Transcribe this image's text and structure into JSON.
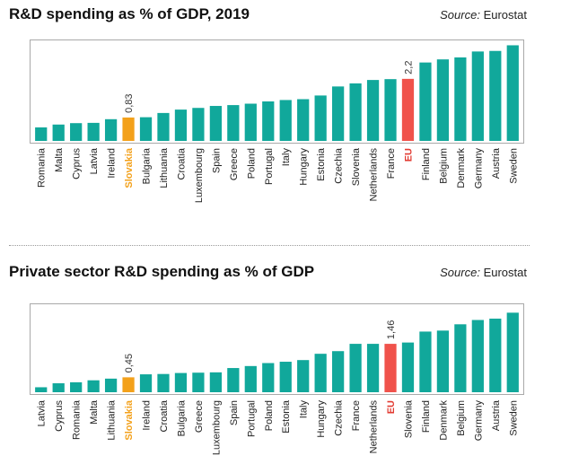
{
  "colors": {
    "bar": "#11a89b",
    "highlight_slovakia": "#f3a11b",
    "highlight_eu": "#f0524b",
    "eu_label": "#e23b32",
    "slovakia_label": "#f3a11b",
    "label": "#222222"
  },
  "charts": [
    {
      "title": "R&D spending as % of GDP, 2019",
      "source_label": "Source:",
      "source_name": "Eurostat"
    },
    {
      "title": "Private sector R&D spending as % of GDP",
      "source_label": "Source:",
      "source_name": "Eurostat"
    }
  ],
  "chart_data": [
    {
      "type": "bar",
      "title": "R&D spending as % of GDP, 2019",
      "xlabel": "",
      "ylabel": "",
      "ylim": [
        0,
        3.5
      ],
      "categories": [
        "Romania",
        "Malta",
        "Cyprus",
        "Latvia",
        "Ireland",
        "Slovakia",
        "Bulgaria",
        "Lithuania",
        "Croatia",
        "Luxembourg",
        "Spain",
        "Greece",
        "Poland",
        "Portugal",
        "Italy",
        "Hungary",
        "Estonia",
        "Czechia",
        "Slovenia",
        "Netherlands",
        "France",
        "EU",
        "Finland",
        "Belgium",
        "Denmark",
        "Germany",
        "Austria",
        "Sweden"
      ],
      "values": [
        0.48,
        0.58,
        0.63,
        0.64,
        0.77,
        0.83,
        0.84,
        0.99,
        1.11,
        1.17,
        1.24,
        1.27,
        1.32,
        1.4,
        1.45,
        1.48,
        1.61,
        1.93,
        2.04,
        2.16,
        2.19,
        2.2,
        2.78,
        2.89,
        2.96,
        3.17,
        3.19,
        3.39
      ],
      "data_labels": [
        {
          "category": "Slovakia",
          "text": "0,83"
        },
        {
          "category": "EU",
          "text": "2,2"
        }
      ],
      "highlights": {
        "Slovakia": "slovakia",
        "EU": "eu"
      }
    },
    {
      "type": "bar",
      "title": "Private sector R&D spending as % of GDP",
      "xlabel": "",
      "ylabel": "",
      "ylim": [
        0,
        2.6
      ],
      "categories": [
        "Latvia",
        "Cyprus",
        "Romania",
        "Malta",
        "Lithuania",
        "Slovakia",
        "Ireland",
        "Croatia",
        "Bulgaria",
        "Greece",
        "Luxembourg",
        "Spain",
        "Portugal",
        "Poland",
        "Estonia",
        "Italy",
        "Hungary",
        "Czechia",
        "France",
        "Netherlands",
        "EU",
        "Slovenia",
        "Finland",
        "Denmark",
        "Belgium",
        "Germany",
        "Austria",
        "Sweden"
      ],
      "values": [
        0.15,
        0.27,
        0.3,
        0.36,
        0.41,
        0.45,
        0.54,
        0.55,
        0.58,
        0.59,
        0.6,
        0.73,
        0.79,
        0.88,
        0.92,
        0.97,
        1.16,
        1.24,
        1.46,
        1.46,
        1.46,
        1.5,
        1.83,
        1.86,
        2.05,
        2.18,
        2.22,
        2.4
      ],
      "data_labels": [
        {
          "category": "Slovakia",
          "text": "0,45"
        },
        {
          "category": "EU",
          "text": "1,46"
        }
      ],
      "highlights": {
        "Slovakia": "slovakia",
        "EU": "eu"
      }
    }
  ]
}
